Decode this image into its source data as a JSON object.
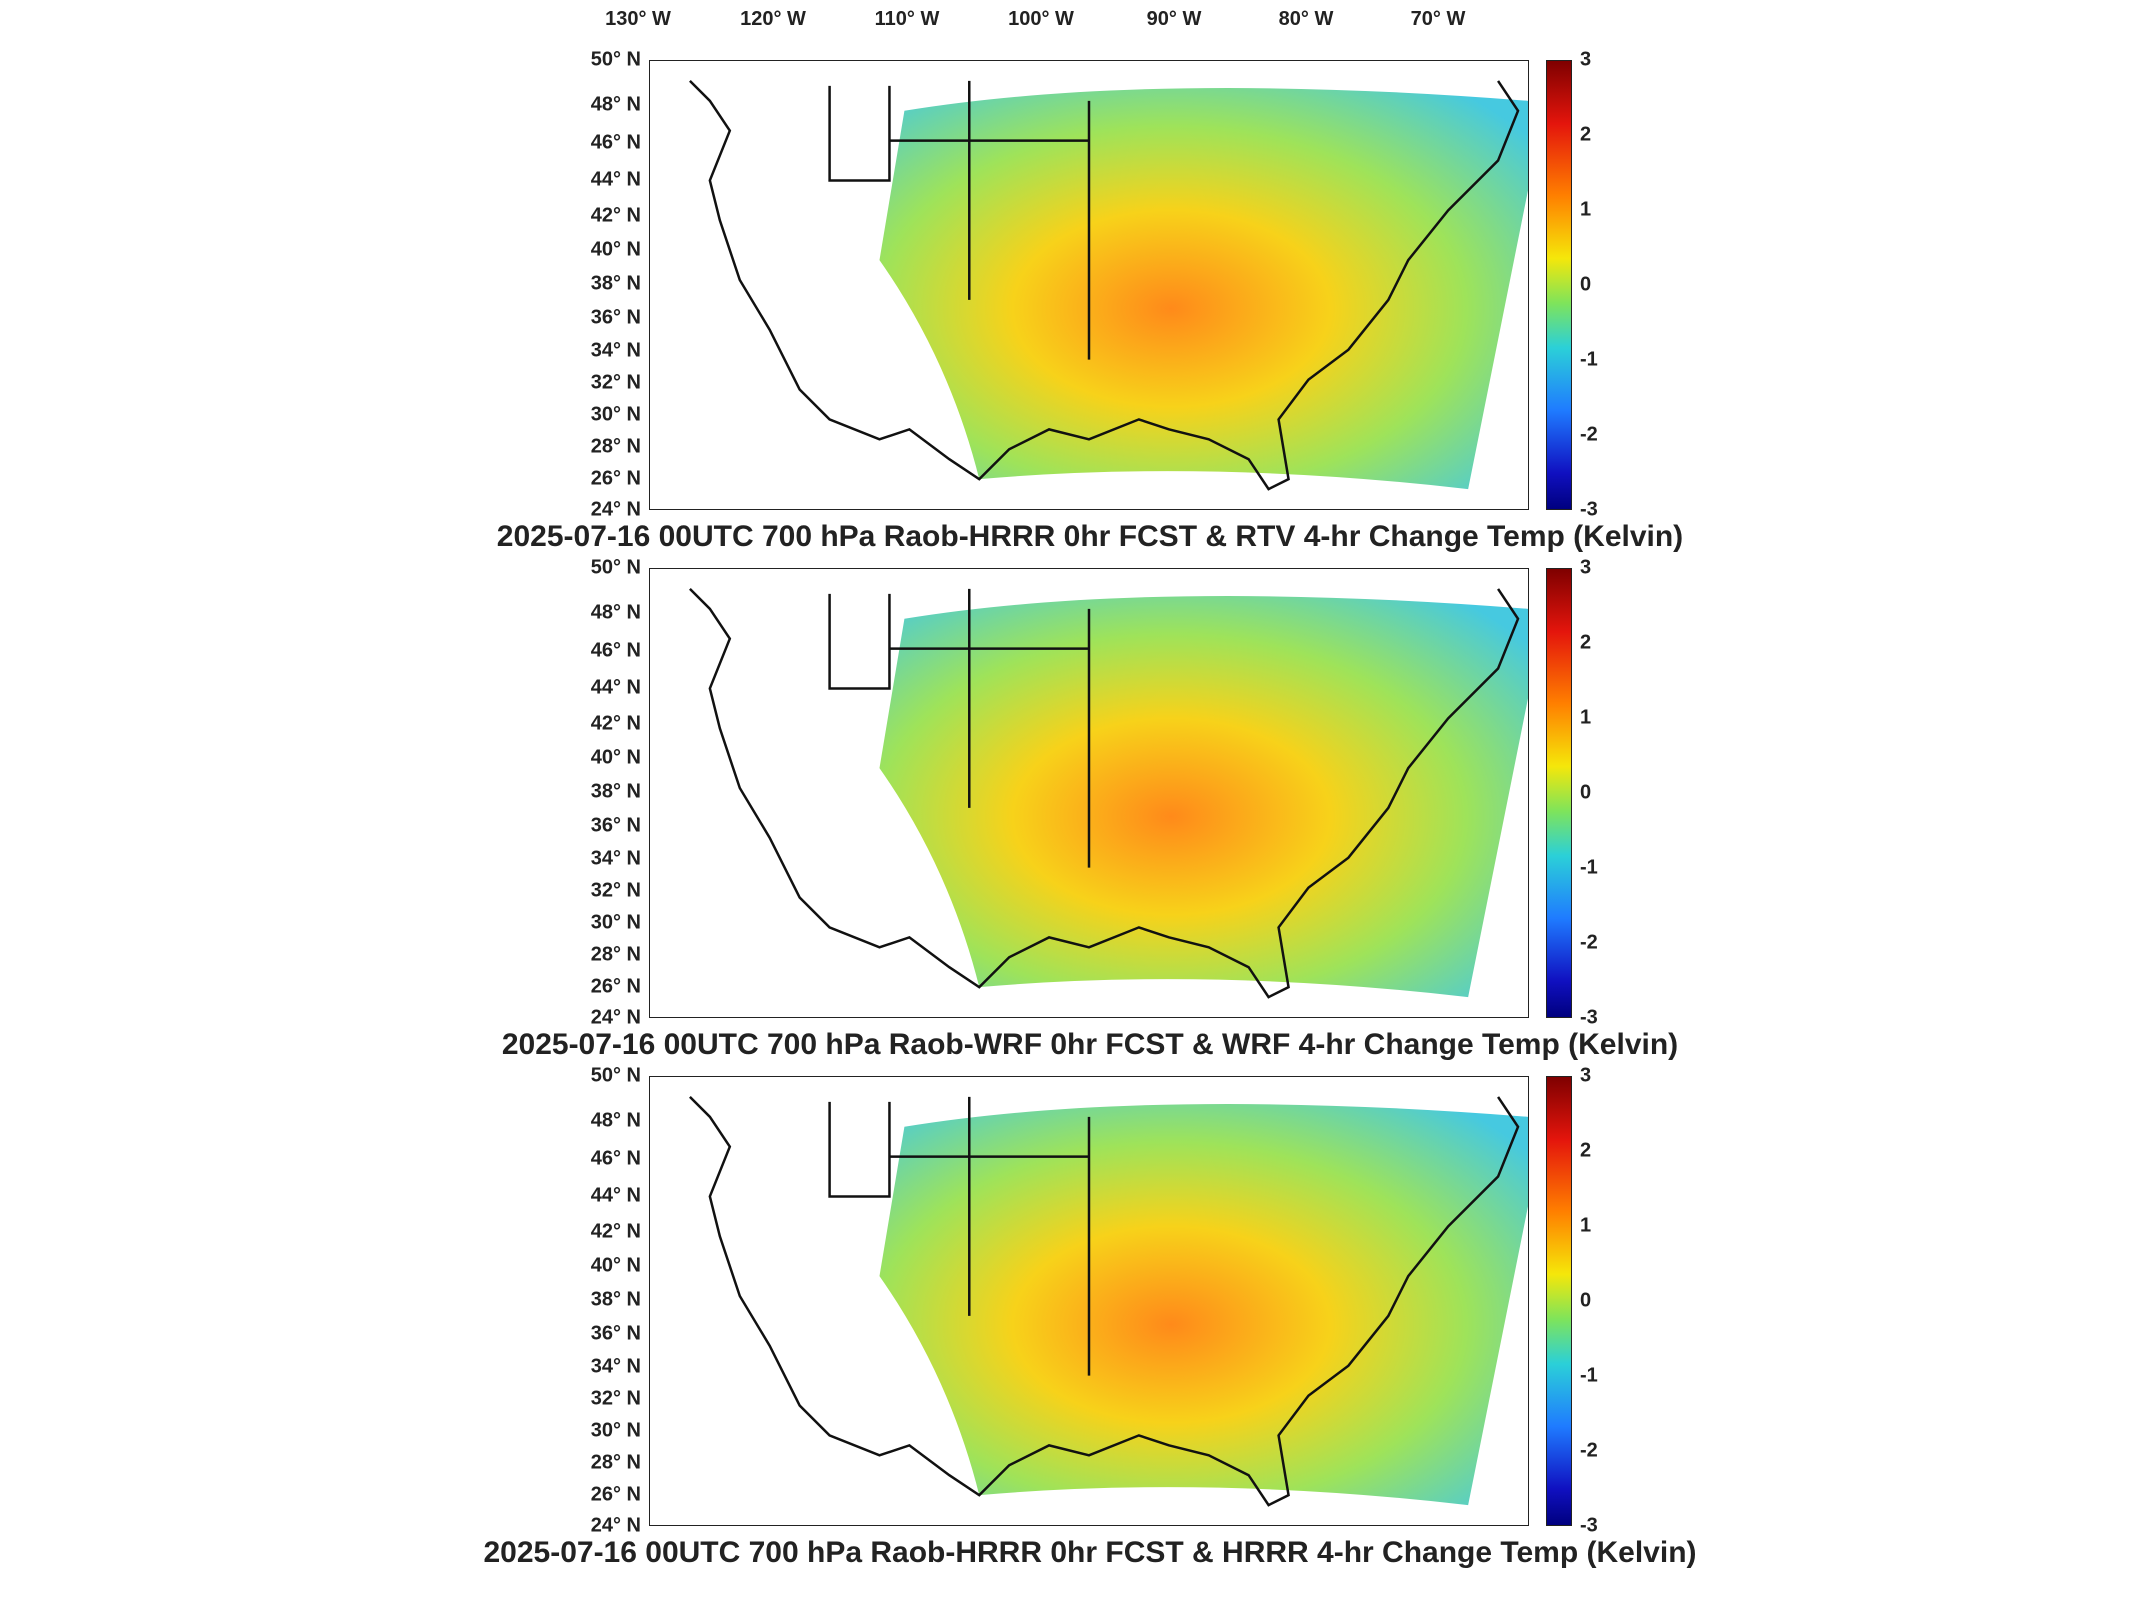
{
  "longitude_labels": [
    "130° W",
    "120° W",
    "110° W",
    "100° W",
    "90° W",
    "80° W",
    "70° W"
  ],
  "latitude_labels": [
    "50° N",
    "48° N",
    "46° N",
    "44° N",
    "42° N",
    "40° N",
    "38° N",
    "36° N",
    "34° N",
    "32° N",
    "30° N",
    "28° N",
    "26° N",
    "24° N"
  ],
  "colorbar": {
    "ticks": [
      "3",
      "2",
      "1",
      "0",
      "-1",
      "-2",
      "-3"
    ],
    "colors": [
      "#7f0000",
      "#e4150c",
      "#ff7f00",
      "#f5e70a",
      "#7fe45a",
      "#2bd0d8",
      "#1f7bff",
      "#1010c0",
      "#00007f"
    ]
  },
  "panels": [
    {
      "title": "2025-07-16 00UTC 700 hPa Raob-HRRR 0hr FCST & RTV 4-hr Change Temp (Kelvin)"
    },
    {
      "title": "2025-07-16 00UTC 700 hPa Raob-WRF 0hr FCST & WRF 4-hr Change Temp (Kelvin)"
    },
    {
      "title": "2025-07-16 00UTC 700 hPa Raob-HRRR 0hr FCST & HRRR 4-hr Change Temp (Kelvin)"
    }
  ]
}
